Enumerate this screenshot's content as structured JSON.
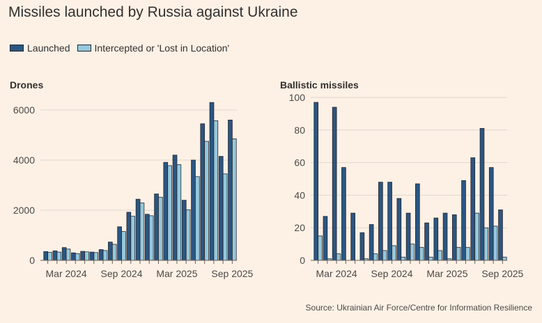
{
  "title": "Missiles launched by Russia against Ukraine",
  "legend": {
    "launched": "Launched",
    "intercepted": "Intercepted or 'Lost in Location'"
  },
  "colors": {
    "launched": "#2b5682",
    "intercepted": "#96c8dc",
    "outline": "#26252a",
    "grid": "#e0d6cc",
    "axis": "#66605c",
    "background": "#fdf1e6"
  },
  "source": "Source: Ukrainian Air Force/Centre for Information Resilience",
  "chart_data": [
    {
      "type": "bar",
      "title": "Drones",
      "xlabel": "",
      "ylabel": "",
      "ylim": [
        0,
        6500
      ],
      "yticks": [
        0,
        2000,
        4000,
        6000
      ],
      "grid": true,
      "categories": [
        "Jan 2024",
        "Feb 2024",
        "Mar 2024",
        "Apr 2024",
        "May 2024",
        "Jun 2024",
        "Jul 2024",
        "Aug 2024",
        "Sep 2024",
        "Oct 2024",
        "Nov 2024",
        "Dec 2024",
        "Jan 2025",
        "Feb 2025",
        "Mar 2025",
        "Apr 2025",
        "May 2025",
        "Jun 2025",
        "Jul 2025",
        "Aug 2025",
        "Sep 2025"
      ],
      "x_tick_labels": [
        {
          "category": "Mar 2024",
          "label": "Mar 2024"
        },
        {
          "category": "Sep 2024",
          "label": "Sep 2024"
        },
        {
          "category": "Mar 2025",
          "label": "Mar 2025"
        },
        {
          "category": "Sep 2025",
          "label": "Sep 2025"
        }
      ],
      "series": [
        {
          "name": "Launched",
          "values": [
            350,
            380,
            510,
            300,
            360,
            330,
            430,
            730,
            1340,
            1920,
            2440,
            1840,
            2650,
            3910,
            4200,
            2400,
            4000,
            5450,
            6300,
            4150,
            5600
          ]
        },
        {
          "name": "Intercepted or 'Lost in Location'",
          "values": [
            320,
            330,
            450,
            270,
            340,
            310,
            390,
            640,
            1150,
            1760,
            2290,
            1780,
            2520,
            3780,
            3820,
            2020,
            3340,
            4750,
            5570,
            3450,
            4850
          ]
        }
      ]
    },
    {
      "type": "bar",
      "title": "Ballistic missiles",
      "xlabel": "",
      "ylabel": "",
      "ylim": [
        0,
        100
      ],
      "yticks": [
        0,
        20,
        40,
        60,
        80,
        100
      ],
      "grid": true,
      "categories": [
        "Jan 2024",
        "Feb 2024",
        "Mar 2024",
        "Apr 2024",
        "May 2024",
        "Jun 2024",
        "Jul 2024",
        "Aug 2024",
        "Sep 2024",
        "Oct 2024",
        "Nov 2024",
        "Dec 2024",
        "Jan 2025",
        "Feb 2025",
        "Mar 2025",
        "Apr 2025",
        "May 2025",
        "Jun 2025",
        "Jul 2025",
        "Aug 2025",
        "Sep 2025"
      ],
      "x_tick_labels": [
        {
          "category": "Mar 2024",
          "label": "Mar 2024"
        },
        {
          "category": "Sep 2024",
          "label": "Sep 2024"
        },
        {
          "category": "Mar 2025",
          "label": "Mar 2025"
        },
        {
          "category": "Sep 2025",
          "label": "Sep 2025"
        }
      ],
      "series": [
        {
          "name": "Launched",
          "values": [
            97,
            27,
            94,
            57,
            29,
            17,
            22,
            48,
            48,
            38,
            29,
            47,
            23,
            26,
            29,
            28,
            49,
            63,
            81,
            57,
            31
          ]
        },
        {
          "name": "Intercepted or 'Lost in Location'",
          "values": [
            15,
            1,
            4,
            0,
            0,
            1,
            4,
            6,
            9,
            2,
            10,
            8,
            2,
            6,
            1,
            8,
            8,
            29,
            20,
            21,
            2
          ]
        }
      ]
    }
  ]
}
